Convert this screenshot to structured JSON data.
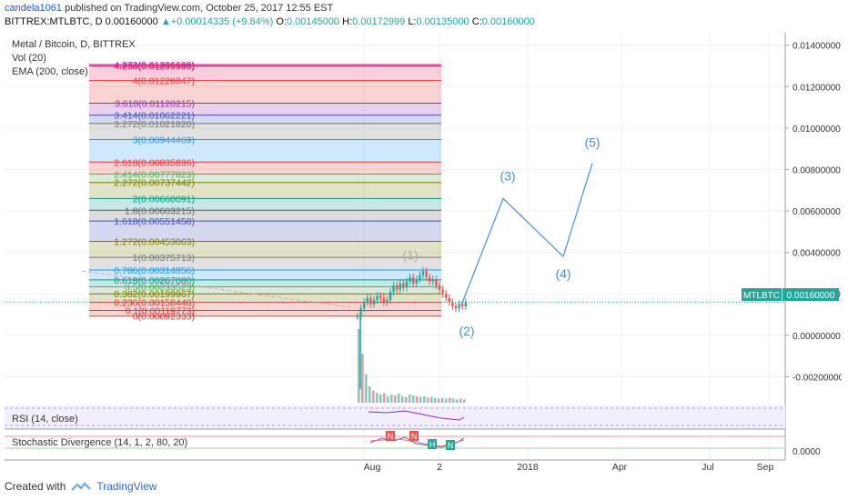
{
  "header": {
    "user": "candela1061",
    "published": " published on TradingView.com, October 25, 2017 12:55 EST",
    "symbol": "BITTREX:MTLBTC, D",
    "price": "0.00160000",
    "change_arrow": "▲",
    "change": "+0.00014335 (+9.84%)",
    "o_label": "O:",
    "o": "0.00145000",
    "h_label": "H:",
    "h": "0.00172999",
    "l_label": "L:",
    "l": "0.00135000",
    "c_label": "C:",
    "c": "0.00160000"
  },
  "legend": {
    "title": "Metal / Bitcoin, D, BITTREX",
    "vol": "Vol (20)",
    "ema": "EMA (200, close)"
  },
  "price_tag": "MTLBTC",
  "price_tag_value": "0.00160000",
  "rsi_label": "RSI (14, close)",
  "stoch_label": "Stochastic Divergence (14, 1, 2, 80, 20)",
  "stoch_axis_label": "0.0000",
  "footer": {
    "created": "Created with",
    "brand": "TradingView"
  },
  "colors": {
    "up": "#26a69a",
    "down": "#ef5350",
    "wave": "#4a90d9",
    "accent": "#1e53e5"
  },
  "chart_data": {
    "type": "line",
    "title": "Metal / Bitcoin, D, BITTREX",
    "y_ticks": [
      0.014,
      0.012,
      0.01,
      0.008,
      0.006,
      0.004,
      0.002,
      0.0,
      -0.002
    ],
    "y_tick_labels": [
      "0.01400000",
      "0.01200000",
      "0.01000000",
      "0.00800000",
      "0.00600000",
      "0.00400000",
      "0.00200000",
      "0.00000000",
      "-0.00200000"
    ],
    "ylim": [
      -0.0033,
      0.0146
    ],
    "x_tick_labels": [
      "Aug",
      "2",
      "2018",
      "Apr",
      "Jul",
      "Sep"
    ],
    "fib_levels": [
      {
        "label": "4.272(0.01306698)",
        "value": 0.01306698,
        "color": "#9c27b0"
      },
      {
        "label": "4.236(0.01299980)",
        "value": 0.0129998,
        "color": "#e91e63"
      },
      {
        "label": "4(0.01228847)",
        "value": 0.01228847,
        "color": "#e53935"
      },
      {
        "label": "3.618(0.01120215)",
        "value": 0.01120215,
        "color": "#9c27b0"
      },
      {
        "label": "3.414(0.01062221)",
        "value": 0.01062221,
        "color": "#3f51b5"
      },
      {
        "label": "3.272(0.01021820)",
        "value": 0.0102182,
        "color": "#757575"
      },
      {
        "label": "3(0.00944469)",
        "value": 0.00944469,
        "color": "#2196f3"
      },
      {
        "label": "2.618(0.00835836)",
        "value": 0.00835836,
        "color": "#e53935"
      },
      {
        "label": "2.414(0.00777823)",
        "value": 0.00777823,
        "color": "#4caf50"
      },
      {
        "label": "2.272(0.00737442)",
        "value": 0.00737442,
        "color": "#7a7a00"
      },
      {
        "label": "2(0.00660091)",
        "value": 0.00660091,
        "color": "#009688"
      },
      {
        "label": "1.8(0.00603215)",
        "value": 0.00603215,
        "color": "#616161"
      },
      {
        "label": "1.618(0.00551458)",
        "value": 0.00551458,
        "color": "#3f51b5"
      },
      {
        "label": "1.272(0.00453063)",
        "value": 0.00453063,
        "color": "#7a7a00"
      },
      {
        "label": "1(0.00375713)",
        "value": 0.00375713,
        "color": "#757575"
      },
      {
        "label": "0.786(0.00314856)",
        "value": 0.00314856,
        "color": "#2196f3"
      },
      {
        "label": "0.618(0.00267080)",
        "value": 0.0026708,
        "color": "#009688"
      },
      {
        "label": "0.5(0.00233523)",
        "value": 0.00233523,
        "color": "#4caf50"
      },
      {
        "label": "0.382(0.00199967)",
        "value": 0.00199967,
        "color": "#7a7a00"
      },
      {
        "label": "0.236(0.00158448)",
        "value": 0.00158448,
        "color": "#e53935"
      },
      {
        "label": "0.1(0.00119773)",
        "value": 0.00119773,
        "color": "#e53935"
      },
      {
        "label": "0(0.00092333)",
        "value": 0.00092333,
        "color": "#e53935"
      }
    ],
    "waves": [
      {
        "label": "(1)",
        "value": 0.00312,
        "color": "#aaaaaa"
      },
      {
        "label": "(2)",
        "value": 0.00095,
        "color": "#4a90d9"
      },
      {
        "label": "(3)",
        "value": 0.0066,
        "color": "#4a90d9"
      },
      {
        "label": "(4)",
        "value": 0.0038,
        "color": "#4a90d9"
      },
      {
        "label": "(5)",
        "value": 0.0083,
        "color": "#4a90d9"
      }
    ],
    "wave_path": [
      0.00145,
      0.0066,
      0.0038,
      0.0083
    ],
    "price_series": [
      0.0009,
      0.0013,
      0.0016,
      0.0018,
      0.0015,
      0.0017,
      0.0019,
      0.0018,
      0.0016,
      0.0017,
      0.0021,
      0.0024,
      0.0022,
      0.0025,
      0.0023,
      0.0026,
      0.0028,
      0.0025,
      0.0027,
      0.0029,
      0.0031,
      0.0028,
      0.0026,
      0.0027,
      0.0024,
      0.0022,
      0.002,
      0.0018,
      0.0016,
      0.0014,
      0.0013,
      0.0015,
      0.0014,
      0.0016
    ],
    "last_price": 0.0016,
    "volume_series": [
      0.9,
      0.6,
      0.35,
      0.2,
      0.15,
      0.12,
      0.1,
      0.12,
      0.08,
      0.1,
      0.09,
      0.11,
      0.08,
      0.07,
      0.1,
      0.09,
      0.08,
      0.07,
      0.08,
      0.06,
      0.07,
      0.06,
      0.05,
      0.06,
      0.05,
      0.06,
      0.05,
      0.04,
      0.05,
      0.04
    ],
    "grid": true,
    "legend_position": "top-left"
  }
}
